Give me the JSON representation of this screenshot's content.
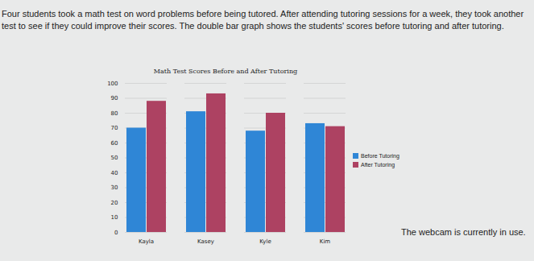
{
  "intro": "Four students took a math test on word problems before being tutored. After attending tutoring sessions for a week, they took another test to see if they could improve their scores. The double bar graph shows the students' scores before tutoring and after tutoring.",
  "notice": "The webcam is currently in use.",
  "chart_data": {
    "type": "bar",
    "title": "Math Test Scores Before and After Tutoring",
    "categories": [
      "Kayla",
      "Kasey",
      "Kyle",
      "Kim"
    ],
    "series": [
      {
        "name": "Before Tutoring",
        "color": "#2f86d6",
        "values": [
          70,
          81,
          68,
          73
        ]
      },
      {
        "name": "After Tutoring",
        "color": "#ad4262",
        "values": [
          88,
          93,
          80,
          71
        ]
      }
    ],
    "ylim": [
      0,
      100
    ],
    "yticks": [
      0,
      10,
      20,
      30,
      40,
      50,
      60,
      70,
      80,
      90,
      100
    ],
    "grid": true,
    "legend": "right"
  }
}
